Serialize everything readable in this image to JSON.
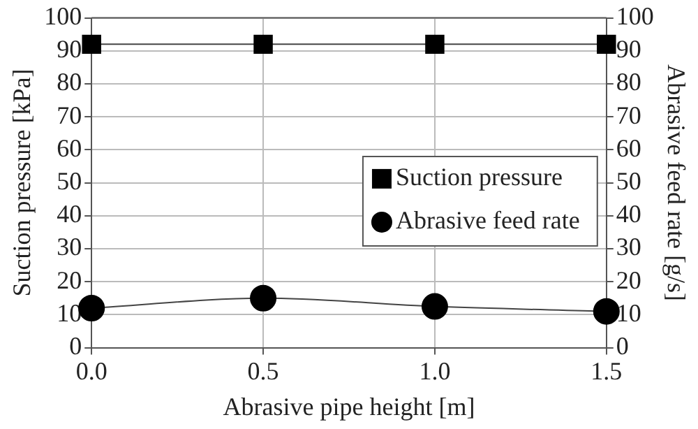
{
  "chart_data": {
    "type": "line",
    "xlabel": "Abrasive pipe height [m]",
    "ylabel": "Suction pressure [kPa]",
    "y2label": "Abrasive feed rate [g/s]",
    "x": [
      0,
      0.5,
      1,
      1.5
    ],
    "series": [
      {
        "name": "Suction pressure",
        "color": "#000000",
        "marker": "square",
        "values": [
          92,
          92,
          92,
          92
        ]
      },
      {
        "name": "Abrasive feed rate",
        "color": "#000000",
        "marker": "circle",
        "axis": "y2",
        "values": [
          12,
          15,
          12.5,
          11
        ]
      }
    ],
    "xlim": [
      0,
      1.5
    ],
    "xticks": [
      {
        "value": 0,
        "label": "0.0"
      },
      {
        "value": 0.5,
        "label": "0.5"
      },
      {
        "value": 1,
        "label": "1.0"
      },
      {
        "value": 1.5,
        "label": "1.5"
      }
    ],
    "ylim": [
      0,
      100
    ],
    "yticks": [
      0,
      10,
      20,
      30,
      40,
      50,
      60,
      70,
      80,
      90,
      100
    ],
    "y2lim": [
      0,
      100
    ],
    "y2ticks": [
      0,
      10,
      20,
      30,
      40,
      50,
      60,
      70,
      80,
      90,
      100
    ],
    "grid": true,
    "legend": "right",
    "line_style": "solid"
  }
}
